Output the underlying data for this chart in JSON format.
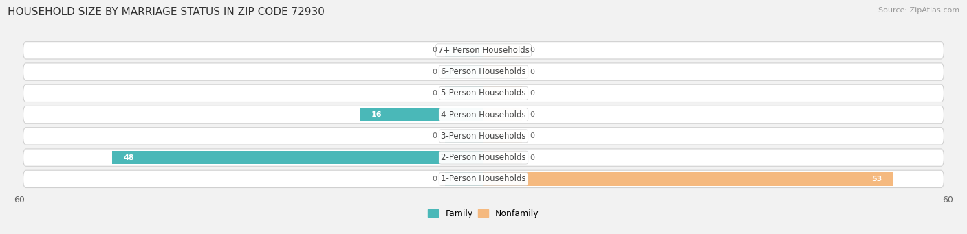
{
  "title": "HOUSEHOLD SIZE BY MARRIAGE STATUS IN ZIP CODE 72930",
  "source": "Source: ZipAtlas.com",
  "categories": [
    "7+ Person Households",
    "6-Person Households",
    "5-Person Households",
    "4-Person Households",
    "3-Person Households",
    "2-Person Households",
    "1-Person Households"
  ],
  "family_values": [
    0,
    0,
    0,
    16,
    0,
    48,
    0
  ],
  "nonfamily_values": [
    0,
    0,
    0,
    0,
    0,
    0,
    53
  ],
  "family_color": "#4ab8b8",
  "nonfamily_color": "#f5b97f",
  "xlim": [
    -60,
    60
  ],
  "background_color": "#f2f2f2",
  "row_color": "#e8e8e8",
  "title_fontsize": 11,
  "source_fontsize": 8,
  "label_fontsize": 8.5,
  "bar_label_fontsize": 8,
  "bar_height": 0.62,
  "legend_labels": [
    "Family",
    "Nonfamily"
  ],
  "stub_size": 5
}
